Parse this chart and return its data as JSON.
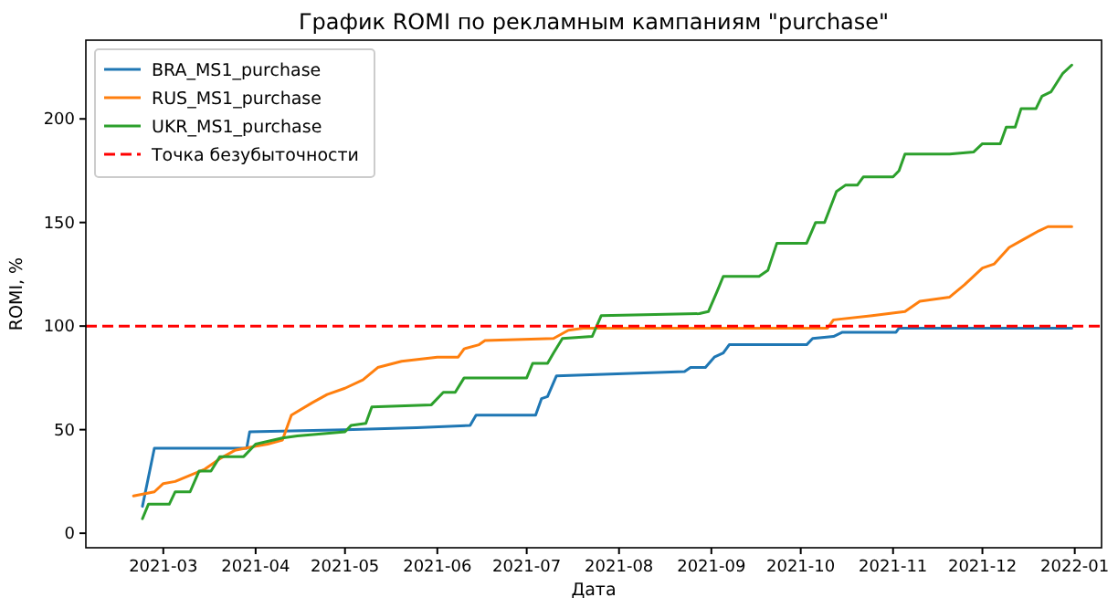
{
  "chart_data": {
    "type": "line",
    "title": "График ROMI по рекламным кампаниям \"purchase\"",
    "xlabel": "Дата",
    "ylabel": "ROMI, %",
    "xlim": [
      "2021-02-03",
      "2022-01-10"
    ],
    "ylim": [
      -7,
      238
    ],
    "xticks": [
      {
        "value": "2021-03-01",
        "label": "2021-03"
      },
      {
        "value": "2021-04-01",
        "label": "2021-04"
      },
      {
        "value": "2021-05-01",
        "label": "2021-05"
      },
      {
        "value": "2021-06-01",
        "label": "2021-06"
      },
      {
        "value": "2021-07-01",
        "label": "2021-07"
      },
      {
        "value": "2021-08-01",
        "label": "2021-08"
      },
      {
        "value": "2021-09-01",
        "label": "2021-09"
      },
      {
        "value": "2021-10-01",
        "label": "2021-10"
      },
      {
        "value": "2021-11-01",
        "label": "2021-11"
      },
      {
        "value": "2021-12-01",
        "label": "2021-12"
      },
      {
        "value": "2022-01-01",
        "label": "2022-01"
      }
    ],
    "yticks": [
      0,
      50,
      100,
      150,
      200
    ],
    "legend": "top left",
    "line_style": "solid",
    "marker": "none",
    "series": [
      {
        "name": "BRA_MS1_purchase",
        "color": "#1f77b4",
        "x": [
          "2021-02-22",
          "2021-02-26",
          "2021-03-29",
          "2021-03-30",
          "2021-05-01",
          "2021-05-25",
          "2021-06-12",
          "2021-06-14",
          "2021-07-04",
          "2021-07-06",
          "2021-07-08",
          "2021-07-11",
          "2021-08-23",
          "2021-08-25",
          "2021-08-30",
          "2021-09-02",
          "2021-09-05",
          "2021-09-07",
          "2021-10-03",
          "2021-10-05",
          "2021-10-12",
          "2021-10-15",
          "2021-11-02",
          "2021-11-03",
          "2021-12-31"
        ],
        "values": [
          13,
          41,
          41,
          49,
          50,
          51,
          52,
          57,
          57,
          65,
          66,
          76,
          78,
          80,
          80,
          85,
          87,
          91,
          91,
          94,
          95,
          97,
          97,
          99,
          99
        ]
      },
      {
        "name": "RUS_MS1_purchase",
        "color": "#ff7f0e",
        "x": [
          "2021-02-19",
          "2021-02-26",
          "2021-03-01",
          "2021-03-05",
          "2021-03-10",
          "2021-03-15",
          "2021-03-20",
          "2021-03-25",
          "2021-04-01",
          "2021-04-05",
          "2021-04-10",
          "2021-04-13",
          "2021-04-20",
          "2021-04-25",
          "2021-05-01",
          "2021-05-07",
          "2021-05-12",
          "2021-05-20",
          "2021-06-01",
          "2021-06-08",
          "2021-06-10",
          "2021-06-15",
          "2021-06-17",
          "2021-07-10",
          "2021-07-15",
          "2021-07-20",
          "2021-10-10",
          "2021-10-12",
          "2021-10-25",
          "2021-11-05",
          "2021-11-10",
          "2021-11-20",
          "2021-11-25",
          "2021-12-01",
          "2021-12-05",
          "2021-12-10",
          "2021-12-15",
          "2021-12-20",
          "2021-12-23",
          "2021-12-31"
        ],
        "values": [
          18,
          20,
          24,
          25,
          28,
          31,
          36,
          40,
          42,
          43,
          45,
          57,
          63,
          67,
          70,
          74,
          80,
          83,
          85,
          85,
          89,
          91,
          93,
          94,
          98,
          99,
          99,
          103,
          105,
          107,
          112,
          114,
          120,
          128,
          130,
          138,
          142,
          146,
          148,
          148
        ]
      },
      {
        "name": "UKR_MS1_purchase",
        "color": "#2ca02c",
        "x": [
          "2021-02-22",
          "2021-02-24",
          "2021-03-03",
          "2021-03-05",
          "2021-03-10",
          "2021-03-13",
          "2021-03-17",
          "2021-03-20",
          "2021-03-28",
          "2021-04-01",
          "2021-04-10",
          "2021-04-15",
          "2021-05-01",
          "2021-05-03",
          "2021-05-08",
          "2021-05-10",
          "2021-05-30",
          "2021-06-03",
          "2021-06-07",
          "2021-06-10",
          "2021-07-01",
          "2021-07-03",
          "2021-07-08",
          "2021-07-10",
          "2021-07-13",
          "2021-07-23",
          "2021-07-26",
          "2021-08-28",
          "2021-08-31",
          "2021-09-03",
          "2021-09-05",
          "2021-09-17",
          "2021-09-20",
          "2021-09-23",
          "2021-10-03",
          "2021-10-06",
          "2021-10-09",
          "2021-10-13",
          "2021-10-16",
          "2021-10-20",
          "2021-10-22",
          "2021-11-01",
          "2021-11-03",
          "2021-11-05",
          "2021-11-20",
          "2021-11-28",
          "2021-12-01",
          "2021-12-07",
          "2021-12-09",
          "2021-12-12",
          "2021-12-14",
          "2021-12-19",
          "2021-12-21",
          "2021-12-24",
          "2021-12-28",
          "2021-12-31"
        ],
        "values": [
          7,
          14,
          14,
          20,
          20,
          30,
          30,
          37,
          37,
          43,
          46,
          47,
          49,
          52,
          53,
          61,
          62,
          68,
          68,
          75,
          75,
          82,
          82,
          87,
          94,
          95,
          105,
          106,
          107,
          117,
          124,
          124,
          127,
          140,
          140,
          150,
          150,
          165,
          168,
          168,
          172,
          172,
          175,
          183,
          183,
          184,
          188,
          188,
          196,
          196,
          205,
          205,
          211,
          213,
          222,
          226
        ]
      }
    ],
    "ref_lines": [
      {
        "axis": "y",
        "value": 100,
        "label": "Точка безубыточности",
        "color": "#ff0000",
        "line_style": "dashed"
      }
    ]
  }
}
